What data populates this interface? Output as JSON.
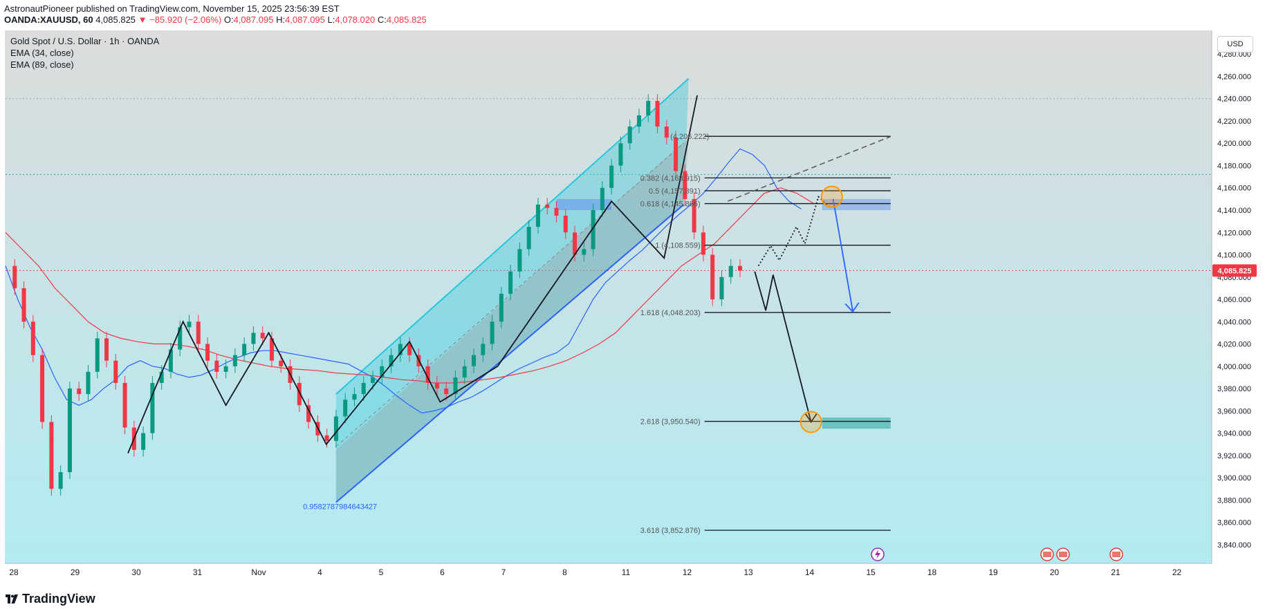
{
  "header": {
    "publisher": "AstronautPioneer published on TradingView.com, November 15, 2025 23:56:39 EST",
    "symbol": "OANDA:XAUUSD, 60",
    "last": "4,085.825",
    "change": "▼ −85.920 (−2.06%)",
    "o_label": "O:",
    "o_value": "4,087.095",
    "h_label": "H:",
    "h_value": "4,087.095",
    "l_label": "L:",
    "l_value": "4,078.020",
    "c_label": "C:",
    "c_value": "4,085.825"
  },
  "legend": {
    "title": "Gold Spot / U.S. Dollar · 1h · OANDA",
    "ema1": "EMA (34, close)",
    "ema2": "EMA (89, close)"
  },
  "currency_button": "USD",
  "footer": {
    "brand": "TradingView"
  },
  "colors": {
    "bg_top": "#dcdcdc",
    "bg_bottom": "#b2ebf2",
    "up": "#089981",
    "down": "#f23645",
    "ema34": "#2962ff",
    "ema89": "#f23645",
    "channel": "#26c6da",
    "fib": "#131722",
    "accent_circle": "#ff9800"
  },
  "chart_data": {
    "type": "candlestick",
    "title": "Gold Spot / U.S. Dollar · 1h · OANDA",
    "ylim": [
      3830,
      4295
    ],
    "y_ticks": [
      {
        "v": 3840,
        "t": "3,840.000"
      },
      {
        "v": 3860,
        "t": "3,860.000"
      },
      {
        "v": 3880,
        "t": "3,880.000"
      },
      {
        "v": 3900,
        "t": "3,900.000"
      },
      {
        "v": 3920,
        "t": "3,920.000"
      },
      {
        "v": 3940,
        "t": "3,940.000"
      },
      {
        "v": 3960,
        "t": "3,960.000"
      },
      {
        "v": 3980,
        "t": "3,980.000"
      },
      {
        "v": 4000,
        "t": "4,000.000"
      },
      {
        "v": 4020,
        "t": "4,020.000"
      },
      {
        "v": 4040,
        "t": "4,040.000"
      },
      {
        "v": 4060,
        "t": "4,060.000"
      },
      {
        "v": 4080,
        "t": "4,080.000"
      },
      {
        "v": 4100,
        "t": "4,100.000"
      },
      {
        "v": 4120,
        "t": "4,120.000"
      },
      {
        "v": 4140,
        "t": "4,140.000"
      },
      {
        "v": 4160,
        "t": "4,160.000"
      },
      {
        "v": 4180,
        "t": "4,180.000"
      },
      {
        "v": 4200,
        "t": "4,200.000"
      },
      {
        "v": 4220,
        "t": "4,220.000"
      },
      {
        "v": 4240,
        "t": "4,240.000"
      },
      {
        "v": 4260,
        "t": "4,260.000"
      },
      {
        "v": 4280,
        "t": "4,280.000"
      }
    ],
    "x_ticks": [
      {
        "i": 0,
        "t": "28"
      },
      {
        "i": 5,
        "t": "29"
      },
      {
        "i": 10,
        "t": "30"
      },
      {
        "i": 15,
        "t": "31"
      },
      {
        "i": 20,
        "t": "Nov"
      },
      {
        "i": 25,
        "t": "4"
      },
      {
        "i": 30,
        "t": "5"
      },
      {
        "i": 35,
        "t": "6"
      },
      {
        "i": 40,
        "t": "7"
      },
      {
        "i": 45,
        "t": "8"
      },
      {
        "i": 50,
        "t": "11"
      },
      {
        "i": 55,
        "t": "12"
      },
      {
        "i": 60,
        "t": "13"
      },
      {
        "i": 65,
        "t": "14"
      },
      {
        "i": 70,
        "t": "15"
      },
      {
        "i": 75,
        "t": "18"
      },
      {
        "i": 80,
        "t": "19"
      },
      {
        "i": 85,
        "t": "20"
      },
      {
        "i": 90,
        "t": "21"
      },
      {
        "i": 95,
        "t": "22"
      }
    ],
    "last_price": {
      "value": 4085.825,
      "label": "4,085.825"
    },
    "closes": [
      4090,
      4070,
      4040,
      4010,
      3950,
      3890,
      3905,
      3980,
      3975,
      3995,
      4025,
      4005,
      3985,
      3945,
      3925,
      3940,
      3985,
      3995,
      4015,
      4035,
      4040,
      4020,
      4005,
      3995,
      4000,
      4010,
      4020,
      4030,
      4025,
      4005,
      4000,
      3985,
      3965,
      3950,
      3938,
      3933,
      3955,
      3970,
      3975,
      3985,
      3990,
      4000,
      4010,
      4020,
      4010,
      4000,
      3985,
      3980,
      3975,
      3990,
      4000,
      4010,
      4020,
      4040,
      4065,
      4085,
      4105,
      4125,
      4145,
      4142,
      4135,
      4120,
      4100,
      4105,
      4140,
      4160,
      4180,
      4200,
      4215,
      4225,
      4238,
      4215,
      4205,
      4175,
      4150,
      4120,
      4100,
      4060,
      4080,
      4090,
      4085.825
    ],
    "ema34": [
      4090,
      4060,
      4035,
      4015,
      3990,
      3970,
      3965,
      3970,
      3980,
      3988,
      4000,
      4005,
      4000,
      3998,
      3993,
      3990,
      3992,
      3997,
      4003,
      4008,
      4012,
      4014,
      4014,
      4012,
      4010,
      4008,
      4006,
      4004,
      4002,
      3996,
      3990,
      3982,
      3973,
      3965,
      3958,
      3960,
      3963,
      3968,
      3972,
      3978,
      3985,
      3992,
      3998,
      4003,
      4008,
      4012,
      4020,
      4040,
      4060,
      4075,
      4085,
      4095,
      4104,
      4115,
      4126,
      4136,
      4145,
      4155,
      4168,
      4182,
      4195,
      4190,
      4180,
      4160,
      4148,
      4141
    ],
    "ema89": [
      4120,
      4105,
      4090,
      4070,
      4055,
      4040,
      4030,
      4025,
      4022,
      4020,
      4020,
      4018,
      4015,
      4010,
      4006,
      4003,
      4000,
      3998,
      3997,
      3996,
      3994,
      3993,
      3992,
      3990,
      3988,
      3987,
      3985,
      3985,
      3986,
      3988,
      3990,
      3993,
      3996,
      4000,
      4005,
      4012,
      4020,
      4030,
      4045,
      4060,
      4075,
      4090,
      4100,
      4110,
      4125,
      4140,
      4155,
      4160,
      4155,
      4146
    ],
    "fib_levels": [
      {
        "ratio": "0.382",
        "label": "0.382 (4,168.915)",
        "value": 4168.915
      },
      {
        "ratio": "0.5",
        "label": "0.5 (4,157.391)",
        "value": 4157.391
      },
      {
        "ratio": "0.618",
        "label": "0.618 (4,145.866)",
        "value": 4145.866
      },
      {
        "ratio": "1",
        "label": "1 (4,108.559)",
        "value": 4108.559
      },
      {
        "ratio": "1.618",
        "label": "1.618 (4,048.203)",
        "value": 4048.203
      },
      {
        "ratio": "2.618",
        "label": "2.618 (3,950.540)",
        "value": 3950.54
      },
      {
        "ratio": "3.618",
        "label": "3.618 (3,852.876)",
        "value": 3852.876
      }
    ],
    "fib_top": {
      "label": "(4,206.222)",
      "value": 4206.222
    },
    "channel_label": "0.9582787984643427",
    "zones": [
      {
        "name": "resistance",
        "from": 4140,
        "to": 4150
      },
      {
        "name": "target",
        "from": 3944,
        "to": 3954
      }
    ]
  }
}
